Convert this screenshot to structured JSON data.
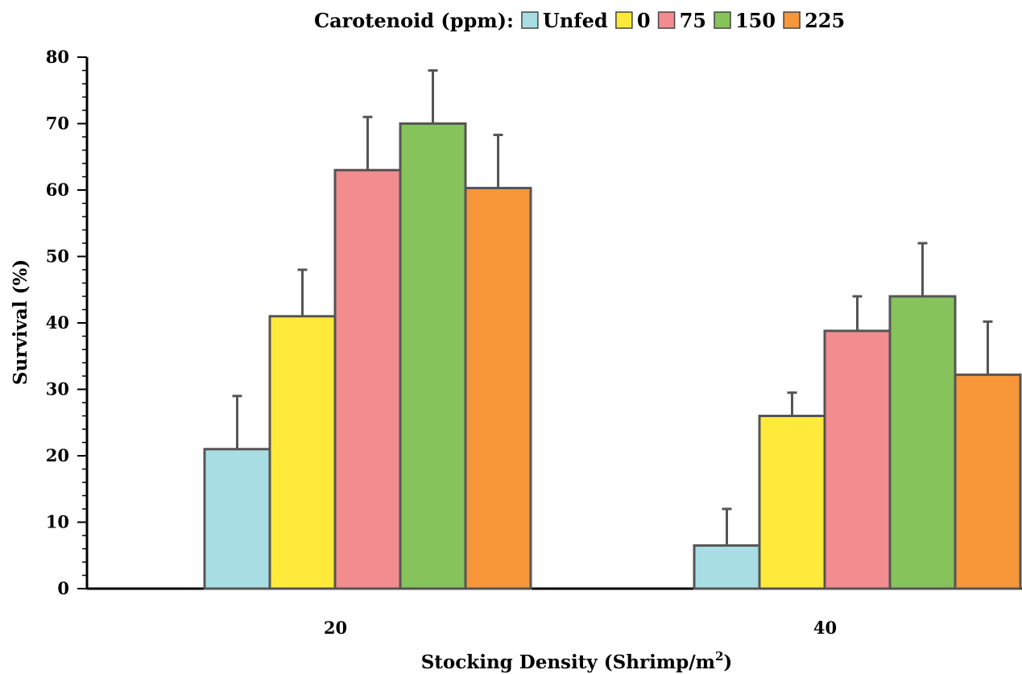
{
  "chart_data": {
    "type": "bar",
    "legend_title": "Carotenoid (ppm):",
    "legend_position": "top",
    "categories": [
      "20",
      "40"
    ],
    "series": [
      {
        "name": "Unfed",
        "values": [
          21,
          6.5
        ],
        "errors": [
          8,
          5.5
        ],
        "color": "#a8dde3"
      },
      {
        "name": "0",
        "values": [
          41,
          26
        ],
        "errors": [
          7,
          3.5
        ],
        "color": "#ffea3c"
      },
      {
        "name": "75",
        "values": [
          63,
          38.8
        ],
        "errors": [
          8,
          5.2
        ],
        "color": "#f38c8f"
      },
      {
        "name": "150",
        "values": [
          70,
          44
        ],
        "errors": [
          8,
          8
        ],
        "color": "#86c35b"
      },
      {
        "name": "225",
        "values": [
          60.3,
          32.2
        ],
        "errors": [
          8,
          8
        ],
        "color": "#f7973a"
      }
    ],
    "xlabel_main": "Stocking Density (Shrimp/m",
    "xlabel_sup": "2",
    "xlabel_end": ")",
    "ylabel": "Survival (%)",
    "ylim": [
      0,
      80
    ],
    "yticks": [
      0,
      10,
      20,
      30,
      40,
      50,
      60,
      70,
      80
    ],
    "grid": false
  }
}
